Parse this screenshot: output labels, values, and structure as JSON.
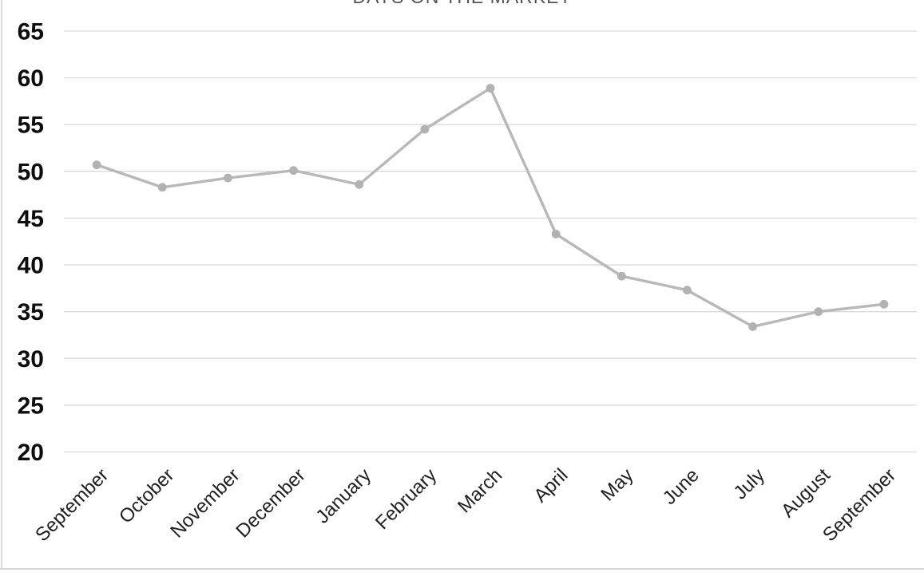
{
  "chart_data": {
    "type": "line",
    "title": "DAYS ON THE MARKET",
    "categories": [
      "September",
      "October",
      "November",
      "December",
      "January",
      "February",
      "March",
      "April",
      "May",
      "June",
      "July",
      "August",
      "September"
    ],
    "series": [
      {
        "name": "Days on the Market",
        "values": [
          50.7,
          48.3,
          49.3,
          50.1,
          48.6,
          54.5,
          58.9,
          43.3,
          38.8,
          37.3,
          33.4,
          35.0,
          35.8
        ]
      }
    ],
    "xlabel": "",
    "ylabel": "",
    "ylim": [
      20,
      65
    ],
    "y_ticks": [
      65,
      60,
      55,
      50,
      45,
      40,
      35,
      30,
      25,
      20
    ],
    "grid": "horizontal-only",
    "legend": "none",
    "marker": "filled-circle",
    "colors": {
      "line": "#b8b8b8",
      "marker": "#b2b2b2",
      "gridline": "#d9d9d9",
      "y_tick_label": "#0d0d0d",
      "x_tick_label": "#1f1f1f",
      "title": "#545454",
      "background": "#ffffff",
      "border": "#d4d4d4"
    }
  }
}
